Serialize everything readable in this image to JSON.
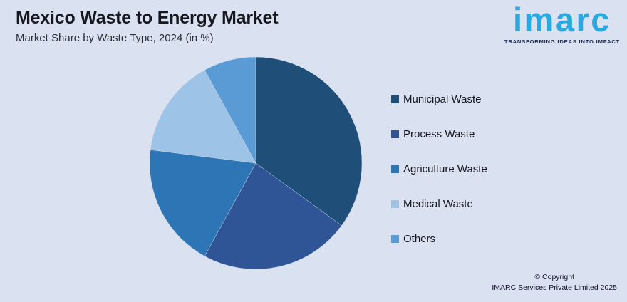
{
  "page": {
    "background": "#dae1f0"
  },
  "header": {
    "title": "Mexico Waste to Energy Market",
    "subtitle": "Market Share by Waste Type, 2024 (in %)"
  },
  "logo": {
    "word": "imarc",
    "tagline": "TRANSFORMING IDEAS INTO IMPACT",
    "word_color": "#29a9e1",
    "tagline_color": "#1b2b4d"
  },
  "footer": {
    "copyright_line1": "© Copyright",
    "copyright_line2": "IMARC Services Private Limited 2025"
  },
  "chart_data": {
    "type": "pie",
    "title": "Mexico Waste to Energy Market",
    "subtitle": "Market Share by Waste Type, 2024 (in %)",
    "unit": "%",
    "start_angle": "top",
    "direction": "clockwise",
    "legend_position": "right",
    "values_estimated_from_angles": true,
    "slices": [
      {
        "label": "Municipal Waste",
        "value": 35,
        "color": "#1f4e79"
      },
      {
        "label": "Process Waste",
        "value": 23,
        "color": "#2f5597"
      },
      {
        "label": "Agriculture Waste",
        "value": 19,
        "color": "#2e75b6"
      },
      {
        "label": "Medical Waste",
        "value": 15,
        "color": "#9dc3e6"
      },
      {
        "label": "Others",
        "value": 8,
        "color": "#5b9bd5"
      }
    ]
  }
}
